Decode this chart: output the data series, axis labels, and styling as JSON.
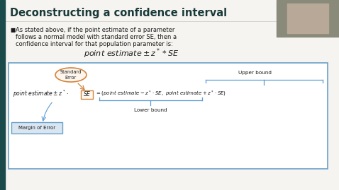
{
  "title": "Deconstructing a confidence interval",
  "slide_bg": "#f0eeea",
  "title_bg": "#f0eeea",
  "title_color": "#1a3a3a",
  "left_bar_color": "#1a4a4a",
  "bullet_text_line1": "As stated above, if the point estimate of a parameter",
  "bullet_text_line2": "follows a normal model with standard error SE, then a",
  "bullet_text_line3": "confidence interval for that population parameter is:",
  "label_standard_error": "Standard\nError",
  "label_margin_of_error": "Margin of Error",
  "label_upper_bound": "Upper bound",
  "label_lower_bound": "Lower bound",
  "box_border": "#6aa0c8",
  "box_bg": "#ffffff",
  "orange_color": "#d4843e",
  "blue_color": "#5b9bd5",
  "text_dark": "#1a1a1a",
  "margin_box_bg": "#d9e6f2",
  "margin_box_border": "#6aa0c8",
  "person_bg": "#8a8a7a"
}
